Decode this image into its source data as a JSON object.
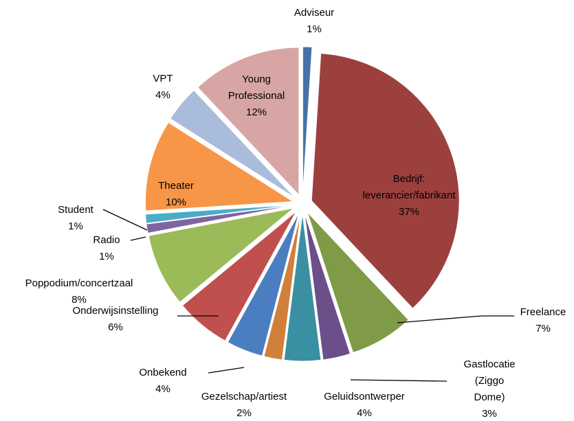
{
  "chart_data": {
    "type": "pie",
    "categories": [
      "Adviseur",
      "Bedrijf: leverancier/fabrikant",
      "Freelance",
      "Gastlocatie (Ziggo Dome)",
      "Geluidsontwerper",
      "Gezelschap/artiest",
      "Onbekend",
      "Onderwijsinstelling",
      "Poppodium/concertzaal",
      "Radio",
      "Student",
      "Theater",
      "VPT",
      "Young Professional"
    ],
    "values": [
      1,
      37,
      7,
      3,
      4,
      2,
      4,
      6,
      8,
      1,
      1,
      10,
      4,
      12
    ],
    "value_labels": [
      "1%",
      "37%",
      "7%",
      "3%",
      "4%",
      "2%",
      "4%",
      "6%",
      "8%",
      "1%",
      "1%",
      "10%",
      "4%",
      "12%"
    ],
    "colors": [
      "#4572a7",
      "#9c403e",
      "#7f9b48",
      "#6a4f8a",
      "#3a8fa3",
      "#d0803a",
      "#4a7ec0",
      "#c0504d",
      "#9bbb59",
      "#8064a2",
      "#4bacc6",
      "#f79646",
      "#a9bcdc",
      "#d8a5a5"
    ]
  }
}
